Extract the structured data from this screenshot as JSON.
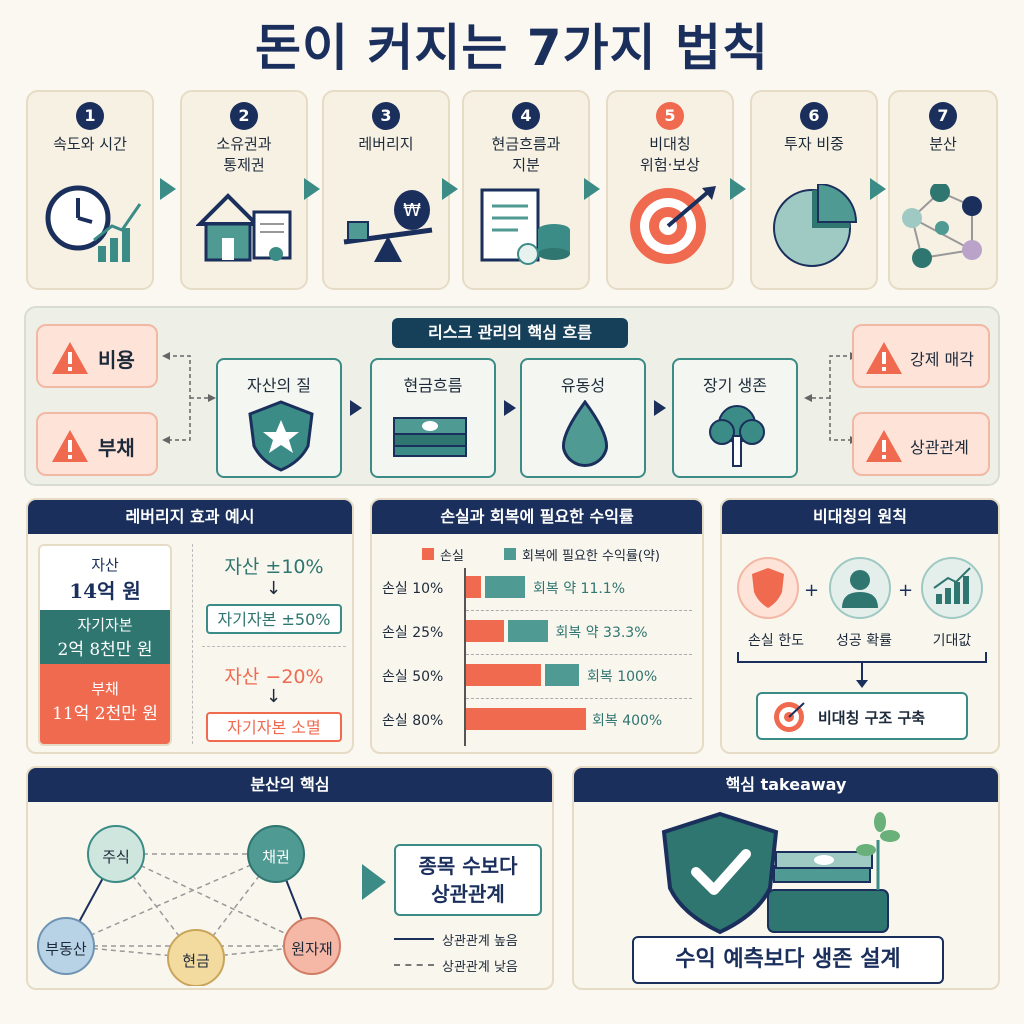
{
  "title": "돈이 커지는 7가지 법칙",
  "steps": [
    {
      "num": "1",
      "label": "속도와 시간",
      "icon": "clock-growth-icon"
    },
    {
      "num": "2",
      "label": "소유권과\n통제권",
      "icon": "house-document-icon"
    },
    {
      "num": "3",
      "label": "레버리지",
      "icon": "seesaw-moneybag-icon"
    },
    {
      "num": "4",
      "label": "현금흐름과\n지분",
      "icon": "document-coins-icon"
    },
    {
      "num": "5",
      "label": "비대칭\n위험·보상",
      "icon": "target-icon"
    },
    {
      "num": "6",
      "label": "투자 비중",
      "icon": "pie-chart-icon"
    },
    {
      "num": "7",
      "label": "분산",
      "icon": "network-icon"
    }
  ],
  "risk": {
    "title": "리스크 관리의 핵심 흐름",
    "left_warnings": [
      "비용",
      "부채"
    ],
    "right_warnings": [
      "강제 매각",
      "상관관계"
    ],
    "flow": [
      "자산의 질",
      "현금흐름",
      "유동성",
      "장기 생존"
    ]
  },
  "leverage": {
    "title": "레버리지 효과 예시",
    "asset_label": "자산",
    "asset_value": "14억 원",
    "equity_label": "자기자본",
    "equity_value": "2억 8천만 원",
    "debt_label": "부채",
    "debt_value": "11억 2천만 원",
    "case1_asset": "자산 ±10%",
    "case1_equity": "자기자본 ±50%",
    "case2_asset": "자산 −20%",
    "case2_equity": "자기자본 소멸"
  },
  "loss": {
    "title": "손실과 회복에 필요한 수익률",
    "legend_loss": "손실",
    "legend_recovery": "회복에 필요한 수익률(약)"
  },
  "chart_data": {
    "type": "bar",
    "categories": [
      "손실 10%",
      "손실 25%",
      "손실 50%",
      "손실 80%"
    ],
    "series": [
      {
        "name": "손실",
        "values": [
          10,
          25,
          50,
          80
        ]
      },
      {
        "name": "회복에 필요한 수익률(약)",
        "values": [
          11.1,
          33.3,
          100,
          400
        ]
      }
    ],
    "data_labels": [
      "회복 약 11.1%",
      "회복 약 33.3%",
      "회복 100%",
      "회복 400%"
    ]
  },
  "asym": {
    "title": "비대칭의 원칙",
    "items": [
      "손실 한도",
      "성공 확률",
      "기대값"
    ],
    "plus": "+",
    "result": "비대칭 구조 구축"
  },
  "diversify": {
    "title": "분산의 핵심",
    "nodes": [
      "주식",
      "채권",
      "부동산",
      "현금",
      "원자재"
    ],
    "callout": "종목 수보다\n상관관계",
    "legend_high": "상관관계 높음",
    "legend_low": "상관관계 낮음"
  },
  "takeaway": {
    "title": "핵심 takeaway",
    "message": "수익 예측보다 생존 설계"
  },
  "colors": {
    "navy": "#1a2f5c",
    "teal": "#3b8b86",
    "coral": "#ef6a4f",
    "cream": "#fbf8f1"
  }
}
